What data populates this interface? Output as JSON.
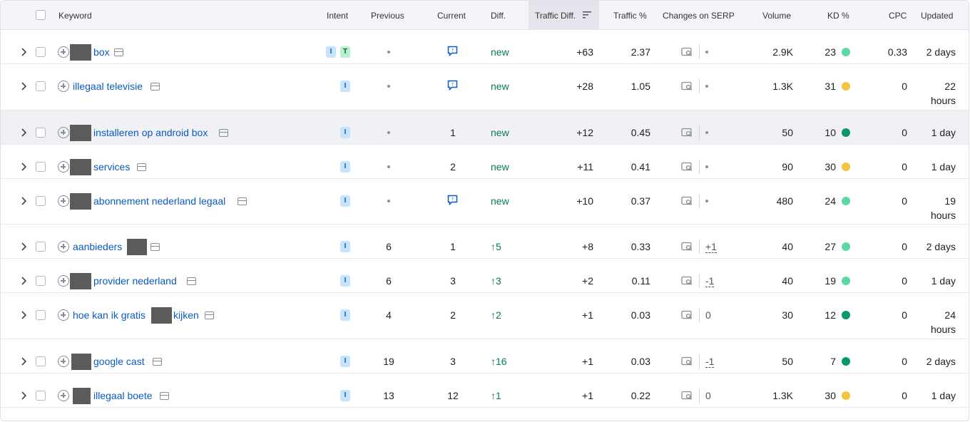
{
  "headers": {
    "keyword": "Keyword",
    "intent": "Intent",
    "previous": "Previous",
    "current": "Current",
    "diff": "Diff.",
    "traffic_diff": "Traffic Diff.",
    "traffic_pct": "Traffic %",
    "changes": "Changes on SERP",
    "volume": "Volume",
    "kd": "KD %",
    "cpc": "CPC",
    "updated": "Updated"
  },
  "colors": {
    "link": "#0a5bbf",
    "kd_easy": "#5ad9a4",
    "kd_medium": "#f5c342",
    "kd_dark": "#0d9668",
    "diff_green": "#0a7a52"
  },
  "rows": [
    {
      "kw_pre": "",
      "kw": "box",
      "intent": [
        "I",
        "T"
      ],
      "previous": "•",
      "current": "serp-feature-icon",
      "diff": "new",
      "traffic_diff": "+63",
      "traffic_pct": "2.37",
      "changes": "•",
      "volume": "2.9K",
      "kd": "23",
      "kd_color": "#5ad9a4",
      "cpc": "0.33",
      "updated": [
        "2 days"
      ]
    },
    {
      "kw_pre": "illegaal televisie",
      "kw": "",
      "intent": [
        "I"
      ],
      "previous": "•",
      "current": "serp-feature-icon",
      "diff": "new",
      "traffic_diff": "+28",
      "traffic_pct": "1.05",
      "changes": "•",
      "volume": "1.3K",
      "kd": "31",
      "kd_color": "#f5c342",
      "cpc": "0",
      "updated": [
        "22",
        "hours"
      ]
    },
    {
      "kw_pre": "",
      "kw": "installeren op android box",
      "intent": [
        "I"
      ],
      "previous": "•",
      "current": "1",
      "diff": "new",
      "traffic_diff": "+12",
      "traffic_pct": "0.45",
      "changes": "•",
      "volume": "50",
      "kd": "10",
      "kd_color": "#0d9668",
      "cpc": "0",
      "updated": [
        "1 day"
      ]
    },
    {
      "kw_pre": "",
      "kw": "services",
      "intent": [
        "I"
      ],
      "previous": "•",
      "current": "2",
      "diff": "new",
      "traffic_diff": "+11",
      "traffic_pct": "0.41",
      "changes": "•",
      "volume": "90",
      "kd": "30",
      "kd_color": "#f5c342",
      "cpc": "0",
      "updated": [
        "1 day"
      ]
    },
    {
      "kw_pre": "",
      "kw": "abonnement nederland legaal",
      "intent": [
        "I"
      ],
      "previous": "•",
      "current": "serp-feature-icon",
      "diff": "new",
      "traffic_diff": "+10",
      "traffic_pct": "0.37",
      "changes": "•",
      "volume": "480",
      "kd": "24",
      "kd_color": "#5ad9a4",
      "cpc": "0",
      "updated": [
        "19",
        "hours"
      ]
    },
    {
      "kw_pre": "aanbieders",
      "kw": "",
      "intent": [
        "I"
      ],
      "previous": "6",
      "current": "1",
      "diff": "↑5",
      "traffic_diff": "+8",
      "traffic_pct": "0.33",
      "changes": "+1",
      "volume": "40",
      "kd": "27",
      "kd_color": "#5ad9a4",
      "cpc": "0",
      "updated": [
        "2 days"
      ]
    },
    {
      "kw_pre": "",
      "kw": "provider nederland",
      "intent": [
        "I"
      ],
      "previous": "6",
      "current": "3",
      "diff": "↑3",
      "traffic_diff": "+2",
      "traffic_pct": "0.11",
      "changes": "-1",
      "volume": "40",
      "kd": "19",
      "kd_color": "#5ad9a4",
      "cpc": "0",
      "updated": [
        "1 day"
      ]
    },
    {
      "kw_pre": "hoe kan ik gratis",
      "kw": "kijken",
      "intent": [
        "I"
      ],
      "previous": "4",
      "current": "2",
      "diff": "↑2",
      "traffic_diff": "+1",
      "traffic_pct": "0.03",
      "changes": "0",
      "volume": "30",
      "kd": "12",
      "kd_color": "#0d9668",
      "cpc": "0",
      "updated": [
        "24",
        "hours"
      ]
    },
    {
      "kw_pre": "",
      "kw": "google cast",
      "intent": [
        "I"
      ],
      "previous": "19",
      "current": "3",
      "diff": "↑16",
      "traffic_diff": "+1",
      "traffic_pct": "0.03",
      "changes": "-1",
      "volume": "50",
      "kd": "7",
      "kd_color": "#0d9668",
      "cpc": "0",
      "updated": [
        "2 days"
      ]
    },
    {
      "kw_pre": "",
      "kw": "illegaal boete",
      "intent": [
        "I"
      ],
      "previous": "13",
      "current": "12",
      "diff": "↑1",
      "traffic_diff": "+1",
      "traffic_pct": "0.22",
      "changes": "0",
      "volume": "1.3K",
      "kd": "30",
      "kd_color": "#f5c342",
      "cpc": "0",
      "updated": [
        "1 day"
      ]
    }
  ]
}
